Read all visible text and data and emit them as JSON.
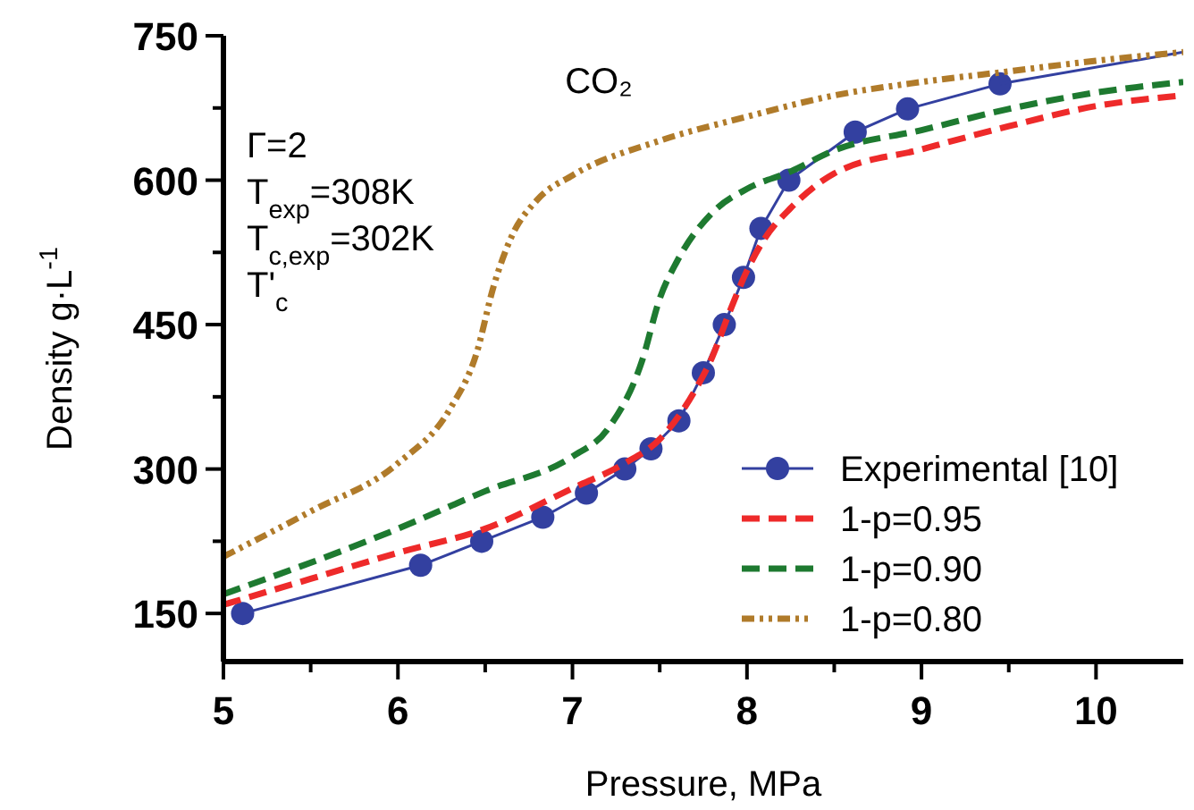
{
  "chart_data": {
    "type": "line",
    "xlabel": "Pressure, MPa",
    "ylabel": "Density g·L$^{-1}$",
    "xlim": [
      5,
      10.5
    ],
    "xticks": [
      5,
      {
        "value": 5.5,
        "label": null
      },
      6,
      {
        "value": 6.5,
        "label": null
      },
      7,
      {
        "value": 7.5,
        "label": null
      },
      8,
      {
        "value": 8.5,
        "label": null
      },
      9,
      {
        "value": 9.5,
        "label": null
      },
      10
    ],
    "ylim": [
      100,
      750
    ],
    "yticks": [
      150,
      {
        "value": 225,
        "label": null
      },
      300,
      {
        "value": 375,
        "label": null
      },
      450,
      {
        "value": 525,
        "label": null
      },
      600,
      {
        "value": 675,
        "label": null
      },
      750
    ],
    "grid": false,
    "legend": "bottom right",
    "annotations": [
      "CO₂",
      "Γ=2",
      "T$_{exp}$=308K",
      "T$_{c,exp}$=302K",
      "T'$_{c}$"
    ],
    "series": [
      {
        "name": "Experimental [10]",
        "color": "#3340a0",
        "marker": "circle",
        "line_style": "solid",
        "x": [
          5.11,
          6.13,
          6.48,
          6.83,
          7.08,
          7.3,
          7.45,
          7.61,
          7.75,
          7.87,
          7.98,
          8.08,
          8.24,
          8.62,
          8.92,
          9.45
        ],
        "values": [
          150,
          200,
          225,
          250,
          275,
          300,
          321,
          350,
          400,
          450,
          499,
          550,
          600,
          650,
          674,
          700
        ]
      },
      {
        "color": "#3340a0",
        "marker": "none",
        "line_style": "solid",
        "x": [
          9.45,
          10.5
        ],
        "values": [
          700,
          733
        ]
      },
      {
        "name": "1-p=0.95",
        "color": "#ee2a2a",
        "marker": "none",
        "line_style": "dashed",
        "x": [
          5,
          5.5,
          6,
          6.5,
          7,
          7.3,
          7.5,
          7.7,
          7.8,
          7.9,
          8,
          8.1,
          8.25,
          8.5,
          9,
          9.5,
          10,
          10.5
        ],
        "values": [
          159,
          186,
          213,
          238,
          280,
          306,
          331,
          381,
          416,
          463,
          506,
          539,
          571,
          607,
          632,
          656,
          677,
          688
        ]
      },
      {
        "name": "1-p=0.90",
        "color": "#1e7a30",
        "marker": "none",
        "line_style": "dashed",
        "x": [
          5,
          6,
          6.5,
          7,
          7.2,
          7.4,
          7.5,
          7.6,
          7.8,
          8,
          8.25,
          8.5,
          9,
          9.5,
          10,
          10.5
        ],
        "values": [
          170,
          238,
          277,
          313,
          341,
          413,
          477,
          516,
          566,
          591,
          609,
          631,
          652,
          674,
          691,
          702
        ]
      },
      {
        "name": "1-p=0.80",
        "color": "#b07b2a",
        "marker": "none",
        "line_style": "dotted",
        "x": [
          5,
          5.5,
          6,
          6.3,
          6.45,
          6.55,
          6.65,
          6.8,
          7,
          7.5,
          8,
          8.5,
          9,
          9.5,
          10,
          10.5
        ],
        "values": [
          209,
          256,
          306,
          363,
          420,
          491,
          541,
          580,
          605,
          641,
          666,
          688,
          702,
          713,
          724,
          733
        ]
      }
    ]
  }
}
